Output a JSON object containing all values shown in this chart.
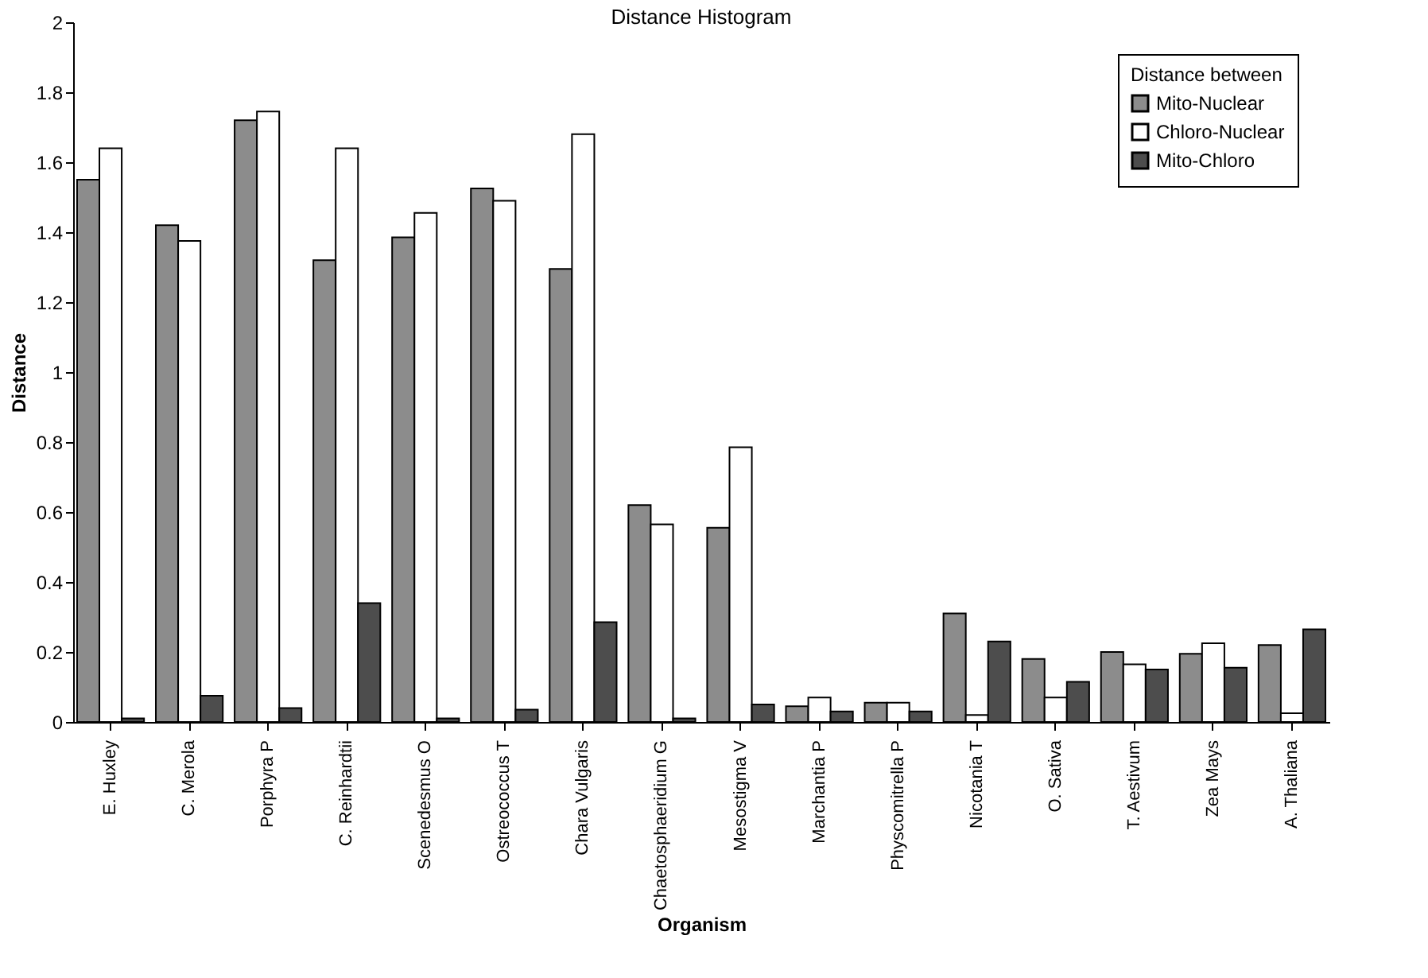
{
  "chart_data": {
    "type": "bar",
    "title": "Distance Histogram",
    "xlabel": "Organism",
    "ylabel": "Distance",
    "legend_title": "Distance between",
    "legend": "top right",
    "grid": false,
    "categories": [
      "E. Huxley",
      "C. Merola",
      "Porphyra P",
      "C. Reinhardtii",
      "Scenedesmus O",
      "Ostreococcus T",
      "Chara Vulgaris",
      "Chaetosphaeridium G",
      "Mesostigma V",
      "Marchantia P",
      "Physcomitrella P",
      "Nicotania T",
      "O. Sativa",
      "T. Aestivum",
      "Zea Mays",
      "A. Thaliana"
    ],
    "ylim": [
      0,
      2
    ],
    "yticks": [
      0,
      0.2,
      0.4,
      0.6,
      0.8,
      1,
      1.2,
      1.4,
      1.6,
      1.8,
      2
    ],
    "series": [
      {
        "name": "Mito-Nuclear",
        "color": "#8c8c8c",
        "values": [
          1.55,
          1.42,
          1.72,
          1.32,
          1.385,
          1.525,
          1.295,
          0.62,
          0.555,
          0.045,
          0.055,
          0.31,
          0.18,
          0.2,
          0.195,
          0.22
        ]
      },
      {
        "name": "Chloro-Nuclear",
        "color": "#ffffff",
        "values": [
          1.64,
          1.375,
          1.745,
          1.64,
          1.455,
          1.49,
          1.68,
          0.565,
          0.785,
          0.07,
          0.055,
          0.02,
          0.07,
          0.165,
          0.225,
          0.025
        ]
      },
      {
        "name": "Mito-Chloro",
        "color": "#4d4d4d",
        "values": [
          0.01,
          0.075,
          0.04,
          0.34,
          0.01,
          0.035,
          0.285,
          0.01,
          0.05,
          0.03,
          0.03,
          0.23,
          0.115,
          0.15,
          0.155,
          0.265
        ]
      }
    ]
  }
}
